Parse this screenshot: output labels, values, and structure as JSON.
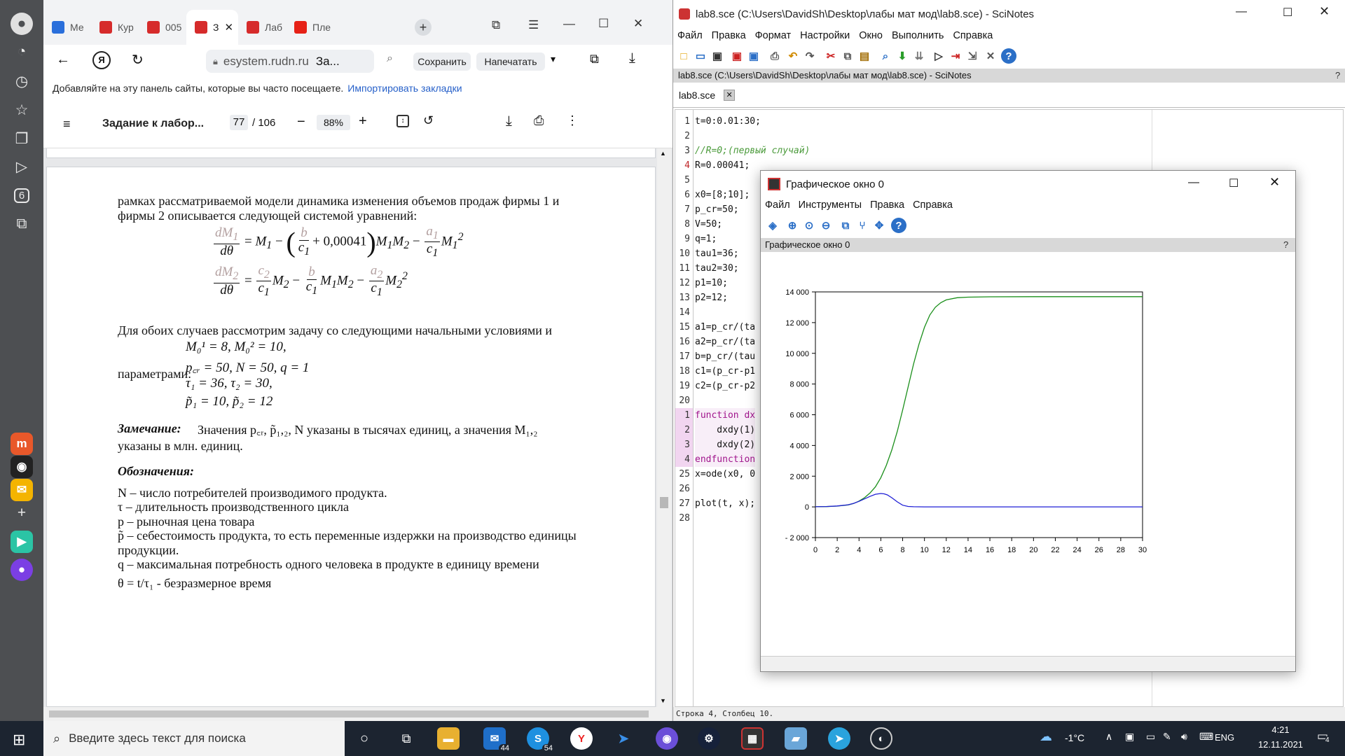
{
  "browser": {
    "tabs": [
      {
        "label": "Ме",
        "color": "#2a6fdb"
      },
      {
        "label": "Кур",
        "color": "#d62b2b"
      },
      {
        "label": "005",
        "color": "#d62b2b"
      },
      {
        "label": "З",
        "color": "#d62b2b"
      },
      {
        "label": "Лаб",
        "color": "#d62b2b"
      },
      {
        "label": "Пле",
        "color": "#e62117"
      }
    ],
    "url_host": "esystem.rudn.ru",
    "url_title": "За...",
    "save_label": "Сохранить",
    "print_label": "Напечатать",
    "bookmark_hint": "Добавляйте на эту панель сайты, которые вы часто посещаете.",
    "import_link": "Импортировать закладки",
    "sidebar_badge": "6"
  },
  "pdf": {
    "title": "Задание к лабор...",
    "page": "77",
    "total": "/ 106",
    "zoom": "88%",
    "para1_line1": "рамках рассматриваемой модели динамика изменения объемов продаж фирмы 1 и",
    "para1_line2": "фирмы 2 описывается следующей системой уравнений:",
    "eq1_const": "+ 0,00041",
    "para2": "Для обоих случаев рассмотрим задачу со следующими начальными условиями и",
    "init_cond": "M₀¹ = 8,  M₀² = 10,",
    "params_label": "параметрами:",
    "param1": "p꜀ᵣ = 50, N = 50, q = 1",
    "param2": "τ₁ = 36, τ₂ = 30,",
    "param3": "p̃₁ = 10, p̃₂ = 12",
    "note_title": "Замечание:",
    "note_text": "Значения  p꜀ᵣ, p̃₁,₂, N  указаны в тысячах единиц, а значения  M₁,₂",
    "note_text2": "указаны в млн. единиц.",
    "notation_title": "Обозначения:",
    "notations": [
      "N – число потребителей производимого продукта.",
      "τ – длительность производственного цикла",
      "p – рыночная цена товара",
      "p̃ – себестоимость продукта, то есть переменные издержки на производство единицы",
      "продукции.",
      "q – максимальная потребность одного человека в продукте в единицу времени",
      "θ = t/τ₁ - безразмерное время"
    ]
  },
  "scinotes": {
    "title": "lab8.sce (C:\\Users\\DavidSh\\Desktop\\лабы мат мод\\lab8.sce) - SciNotes",
    "menu": [
      "Файл",
      "Правка",
      "Формат",
      "Настройки",
      "Окно",
      "Выполнить",
      "Справка"
    ],
    "path_bar": "lab8.sce (C:\\Users\\DavidSh\\Desktop\\лабы мат мод\\lab8.sce) - SciNotes",
    "help_q": "?",
    "tab": "lab8.sce",
    "line_numbers": [
      "1",
      "2",
      "3",
      "4",
      "5",
      "6",
      "7",
      "8",
      "9",
      "10",
      "11",
      "12",
      "13",
      "14",
      "15",
      "16",
      "17",
      "18",
      "19",
      "20",
      "1",
      "2",
      "3",
      "4",
      "25",
      "26",
      "27",
      "28"
    ],
    "code": [
      "t=0:0.01:30;",
      "",
      "//R=0;(первый случай)",
      "R=0.00041;",
      "",
      "x0=[8;10];",
      "p_cr=50;",
      "V=50;",
      "q=1;",
      "tau1=36;",
      "tau2=30;",
      "p1=10;",
      "p2=12;",
      "",
      "a1=p_cr/(ta",
      "a2=p_cr/(ta",
      "b=p_cr/(tau",
      "c1=(p_cr-p1",
      "c2=(p_cr-p2",
      "",
      "function dx",
      "    dxdy(1)",
      "    dxdy(2)",
      "endfunction",
      "x=ode(x0, 0",
      "",
      "plot(t, x);",
      ""
    ],
    "status": "Строка 4, Столбец 10."
  },
  "graph": {
    "title": "Графическое окно 0",
    "menu": [
      "Файл",
      "Инструменты",
      "Правка",
      "Справка"
    ],
    "label": "Графическое окно 0",
    "help_q": "?"
  },
  "chart_data": {
    "type": "line",
    "title": "",
    "xlabel": "",
    "ylabel": "",
    "xlim": [
      0,
      30
    ],
    "ylim": [
      -2000,
      14000
    ],
    "xticks": [
      0,
      2,
      4,
      6,
      8,
      10,
      12,
      14,
      16,
      18,
      20,
      22,
      24,
      26,
      28,
      30
    ],
    "yticks": [
      -2000,
      0,
      2000,
      4000,
      6000,
      8000,
      10000,
      12000,
      14000
    ],
    "ytick_labels": [
      "- 2 000",
      "0",
      "2 000",
      "4 000",
      "6 000",
      "8 000",
      "10 000",
      "12 000",
      "14 000"
    ],
    "grid": false,
    "series": [
      {
        "color": "#1a8f1a",
        "x": [
          0,
          1,
          2,
          3,
          3.5,
          4,
          4.5,
          5,
          5.5,
          6,
          6.5,
          7,
          7.5,
          8,
          8.5,
          9,
          9.5,
          10,
          10.5,
          11,
          11.5,
          12,
          13,
          14,
          16,
          20,
          30
        ],
        "y": [
          8,
          20,
          50,
          130,
          220,
          380,
          600,
          900,
          1300,
          1900,
          2700,
          3700,
          4900,
          6300,
          7800,
          9300,
          10600,
          11700,
          12500,
          13000,
          13300,
          13480,
          13620,
          13660,
          13680,
          13690,
          13690
        ]
      },
      {
        "color": "#1f1fd6",
        "x": [
          0,
          1,
          2,
          3,
          3.5,
          4,
          4.5,
          5,
          5.5,
          6,
          6.3,
          6.6,
          7,
          7.5,
          8,
          8.5,
          9,
          10,
          12,
          16,
          20,
          30
        ],
        "y": [
          10,
          25,
          60,
          140,
          230,
          360,
          520,
          680,
          820,
          870,
          850,
          780,
          600,
          330,
          110,
          30,
          8,
          2,
          0,
          0,
          0,
          0
        ]
      }
    ]
  },
  "taskbar": {
    "search_placeholder": "Введите здесь текст для поиска",
    "mail_badge": "44",
    "skype_badge": "54",
    "temperature": "-1°C",
    "lang": "ENG",
    "time": "4:21",
    "date": "12.11.2021",
    "notif_count": "4"
  }
}
